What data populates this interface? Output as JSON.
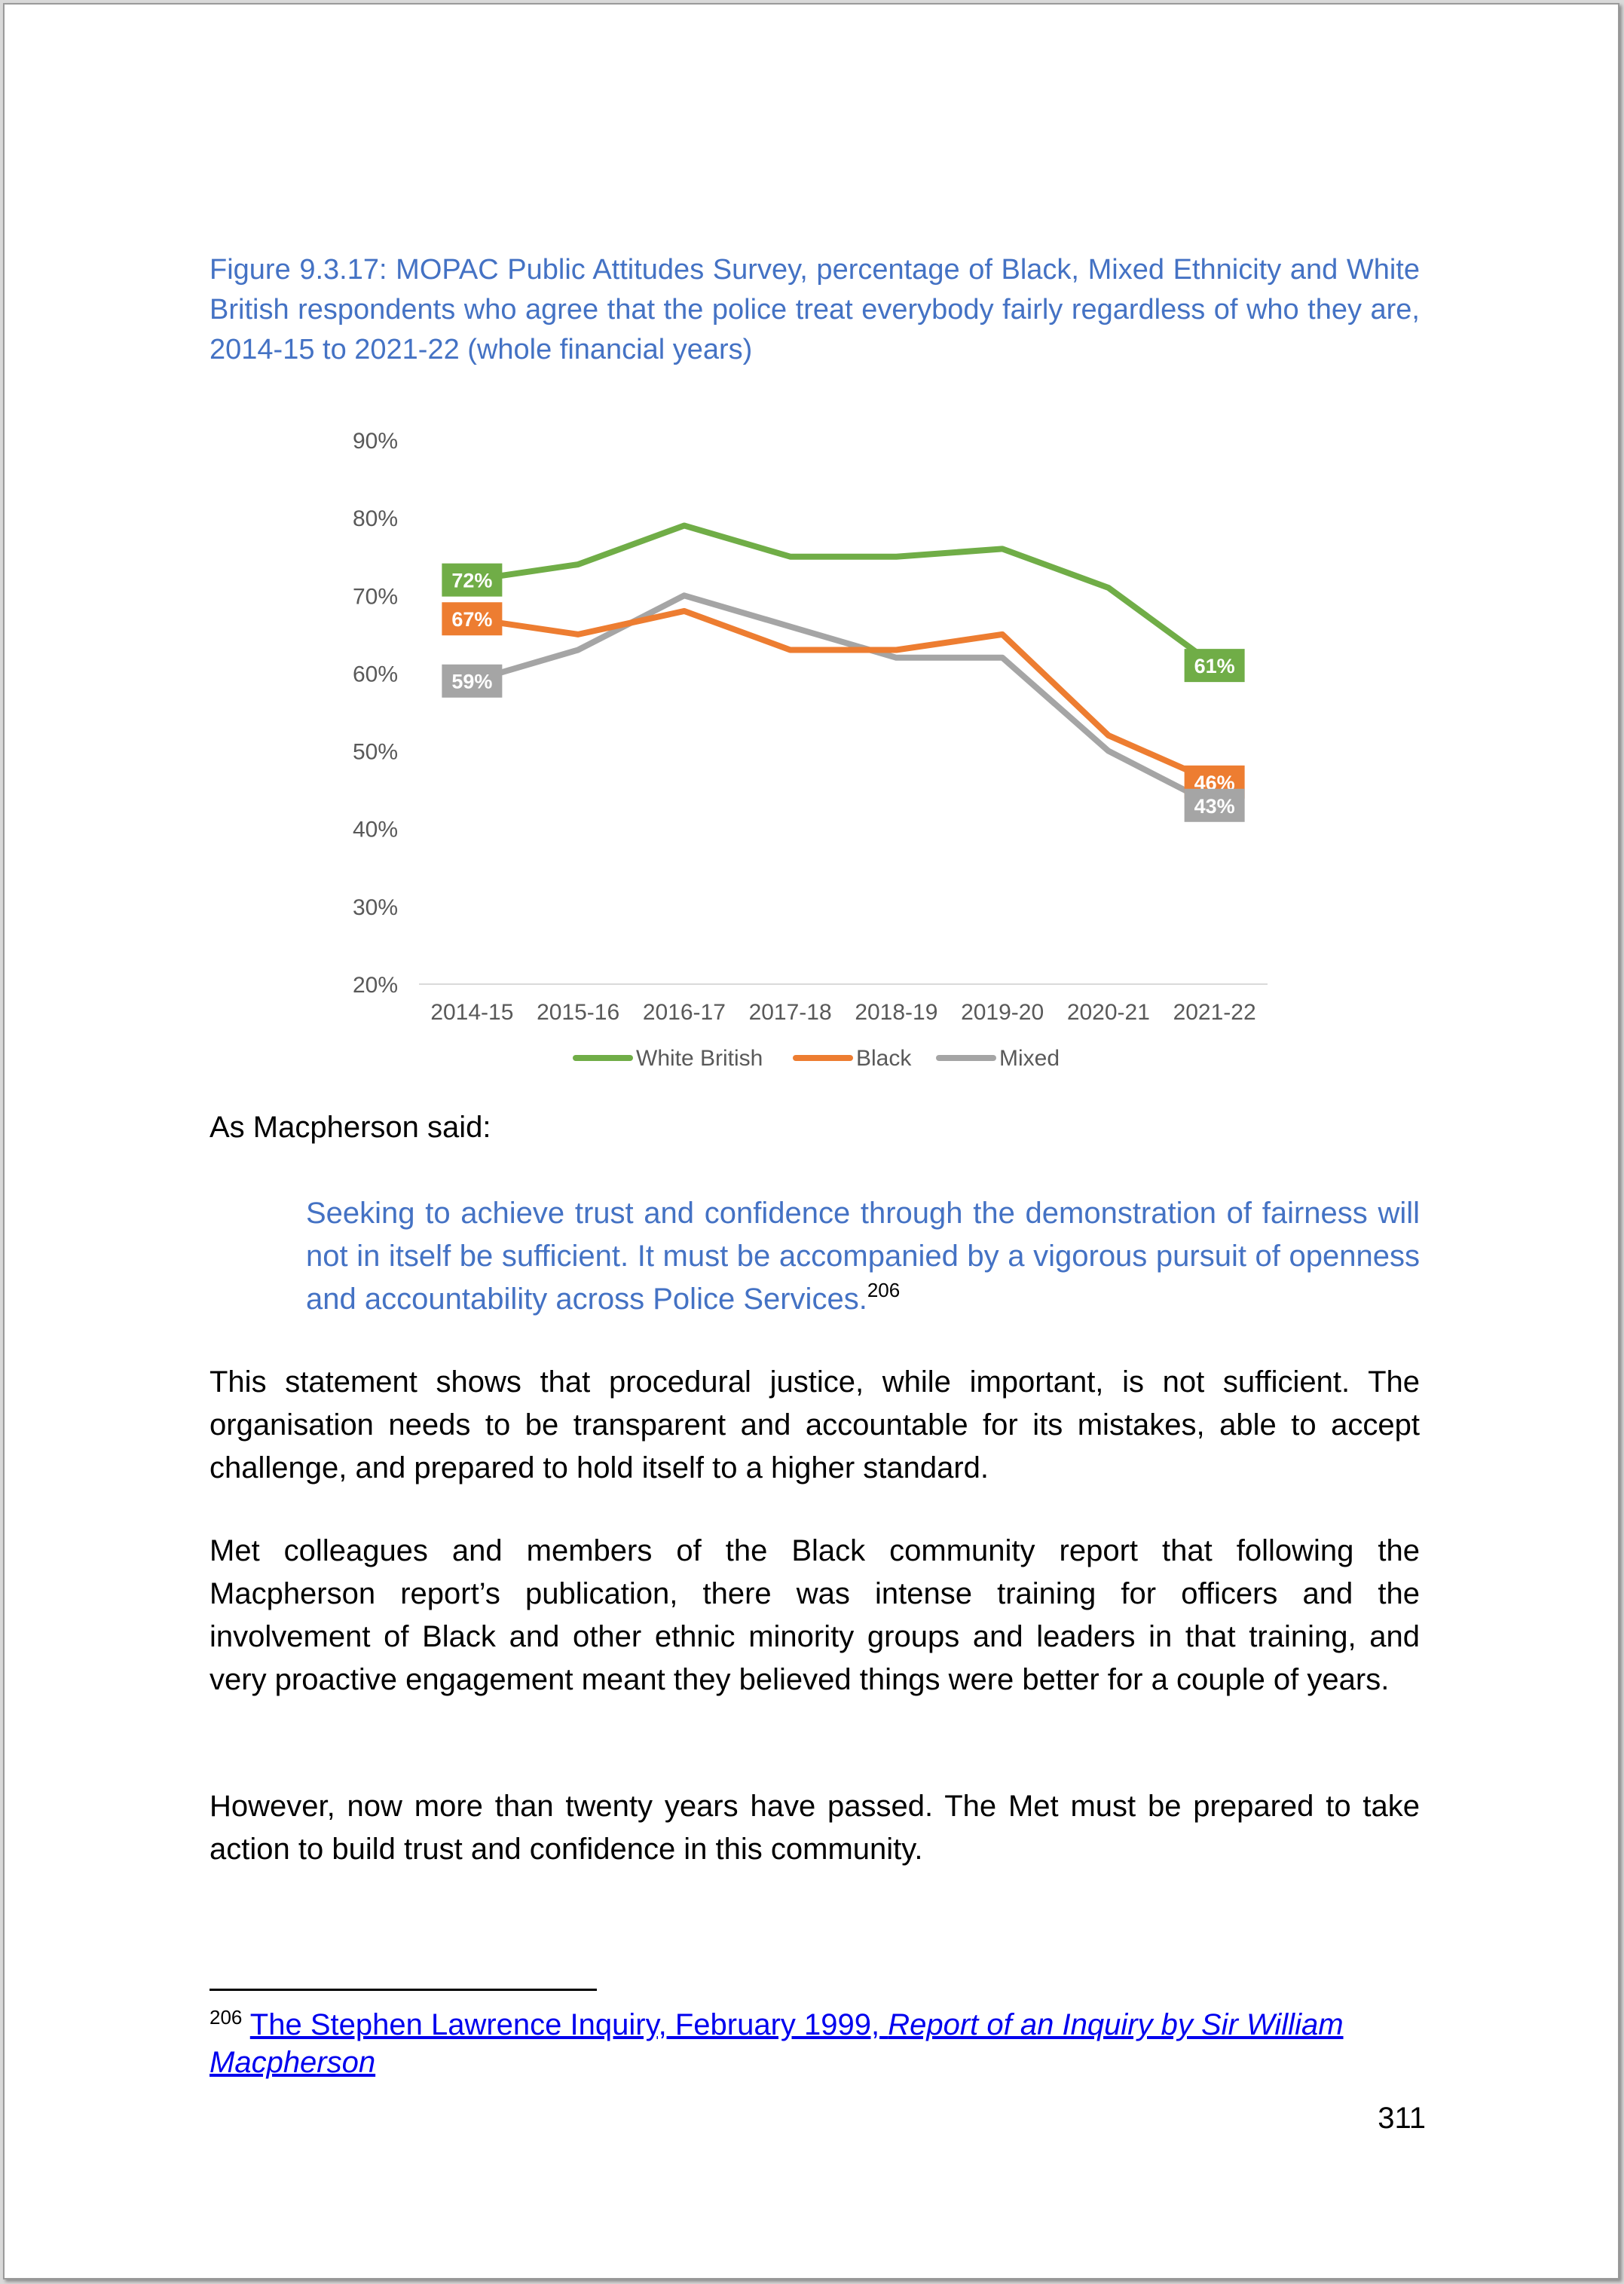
{
  "figure": {
    "caption": "Figure 9.3.17: MOPAC Public Attitudes Survey, percentage of Black, Mixed Ethnicity and White British respondents who agree that the police treat everybody fairly regardless of who they are, 2014-15 to 2021-22 (whole financial years)"
  },
  "chart_data": {
    "type": "line",
    "title": "",
    "xlabel": "",
    "ylabel": "",
    "categories": [
      "2014-15",
      "2015-16",
      "2016-17",
      "2017-18",
      "2018-19",
      "2019-20",
      "2020-21",
      "2021-22"
    ],
    "ylim": [
      20,
      90
    ],
    "yticks": [
      20,
      30,
      40,
      50,
      60,
      70,
      80,
      90
    ],
    "ytick_labels": [
      "20%",
      "30%",
      "40%",
      "50%",
      "60%",
      "70%",
      "80%",
      "90%"
    ],
    "grid": false,
    "legend_position": "bottom",
    "series": [
      {
        "name": "White British",
        "color": "#70ad47",
        "values": [
          72,
          74,
          79,
          75,
          75,
          76,
          71,
          61
        ],
        "data_labels": {
          "0": "72%",
          "7": "61%"
        }
      },
      {
        "name": "Black",
        "color": "#ed7d31",
        "values": [
          67,
          65,
          68,
          63,
          63,
          65,
          52,
          46
        ],
        "data_labels": {
          "0": "67%",
          "7": "46%"
        }
      },
      {
        "name": "Mixed",
        "color": "#a5a5a5",
        "values": [
          59,
          63,
          70,
          66,
          62,
          62,
          50,
          43
        ],
        "data_labels": {
          "0": "59%",
          "7": "43%"
        }
      }
    ]
  },
  "body": {
    "intro": "As Macpherson said:",
    "quote": "Seeking to achieve trust and confidence through the demonstration of fairness will not in itself be sufficient. It must be accompanied by a vigorous pursuit of openness and accountability across Police Services.",
    "quote_ref": "206",
    "para1": "This statement shows that procedural justice, while important, is not sufficient. The organisation needs to be transparent and accountable for its mistakes, able to accept challenge, and prepared to hold itself to a higher standard.",
    "para2": "Met colleagues and members of the Black community report that following the Macpherson report’s publication, there was intense training for officers and the involvement of Black and other ethnic minority groups and leaders in that training, and very proactive engagement meant they believed things were better for a couple of years.",
    "para3": "However, now more than twenty years have passed. The Met must be prepared to take action to build trust and confidence in this community."
  },
  "footnote": {
    "number": "206",
    "link_plain": "The Stephen Lawrence Inquiry, February 1999, ",
    "link_italic": "Report of an Inquiry by Sir William Macpherson"
  },
  "page_number": "311"
}
